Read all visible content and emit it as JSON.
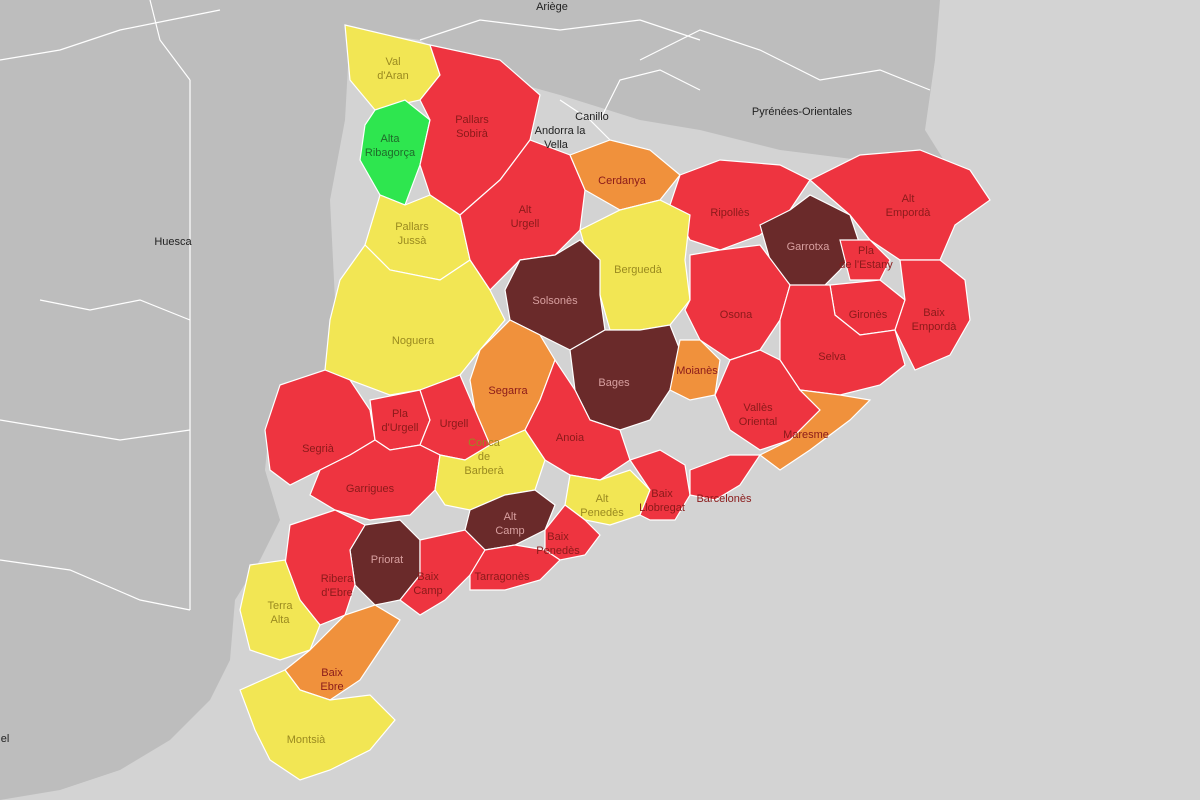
{
  "colors": {
    "sea": "#d3d3d3",
    "land_outside": "#bdbdbd",
    "level_green": "#2ee64f",
    "level_yellow": "#f2e654",
    "level_orange": "#f0913c",
    "level_red": "#ee3440",
    "level_darkred": "#6a2a2a"
  },
  "outside_regions": [
    {
      "label": "Ariège"
    },
    {
      "label": "Canillo"
    },
    {
      "label": "Andorra la"
    },
    {
      "label": "Vella"
    },
    {
      "label": "Pyrénées-Orientales"
    },
    {
      "label": "Huesca"
    },
    {
      "label": "el"
    }
  ],
  "comarques": [
    {
      "label": "Val",
      "label2": "d'Aran",
      "level": "yellow"
    },
    {
      "label": "Alta",
      "label2": "Ribagorça",
      "level": "green"
    },
    {
      "label": "Pallars",
      "label2": "Sobirà",
      "level": "red"
    },
    {
      "label": "Pallars",
      "label2": "Jussà",
      "level": "yellow"
    },
    {
      "label": "Alt",
      "label2": "Urgell",
      "level": "red"
    },
    {
      "label": "Cerdanya",
      "level": "orange"
    },
    {
      "label": "Ripollès",
      "level": "red"
    },
    {
      "label": "Alt",
      "label2": "Empordà",
      "level": "red"
    },
    {
      "label": "Garrotxa",
      "level": "darkred"
    },
    {
      "label": "Pla",
      "label2": "de l'Estany",
      "level": "red"
    },
    {
      "label": "Gironès",
      "level": "red"
    },
    {
      "label": "Baix",
      "label2": "Empordà",
      "level": "red"
    },
    {
      "label": "Berguedà",
      "level": "yellow"
    },
    {
      "label": "Solsonès",
      "level": "darkred"
    },
    {
      "label": "Osona",
      "level": "red"
    },
    {
      "label": "Selva",
      "level": "red"
    },
    {
      "label": "Noguera",
      "level": "yellow"
    },
    {
      "label": "Segarra",
      "level": "orange"
    },
    {
      "label": "Bages",
      "level": "darkred"
    },
    {
      "label": "Moianès",
      "level": "orange"
    },
    {
      "label": "Vallès",
      "label2": "Oriental",
      "level": "red"
    },
    {
      "label": "Maresme",
      "level": "orange"
    },
    {
      "label": "Segrià",
      "level": "red"
    },
    {
      "label": "Pla",
      "label2": "d'Urgell",
      "level": "red"
    },
    {
      "label": "Urgell",
      "level": "red"
    },
    {
      "label": "Anoia",
      "level": "red"
    },
    {
      "label": "Garrigues",
      "level": "red"
    },
    {
      "label": "Conca",
      "label2": "de",
      "label3": "Barberà",
      "level": "yellow"
    },
    {
      "label": "Alt",
      "label2": "Penedès",
      "level": "yellow"
    },
    {
      "label": "Baix",
      "label2": "Llobregat",
      "level": "red"
    },
    {
      "label": "Barcelonès",
      "level": "red"
    },
    {
      "label": "Alt",
      "label2": "Camp",
      "level": "darkred"
    },
    {
      "label": "Baix",
      "label2": "Penedès",
      "level": "red"
    },
    {
      "label": "Priorat",
      "level": "darkred"
    },
    {
      "label": "Ribera",
      "label2": "d'Ebre",
      "level": "red"
    },
    {
      "label": "Baix",
      "label2": "Camp",
      "level": "red"
    },
    {
      "label": "Tarragonès",
      "level": "red"
    },
    {
      "label": "Terra",
      "label2": "Alta",
      "level": "yellow"
    },
    {
      "label": "Baix",
      "label2": "Ebre",
      "level": "orange"
    },
    {
      "label": "Montsià",
      "level": "yellow"
    }
  ]
}
